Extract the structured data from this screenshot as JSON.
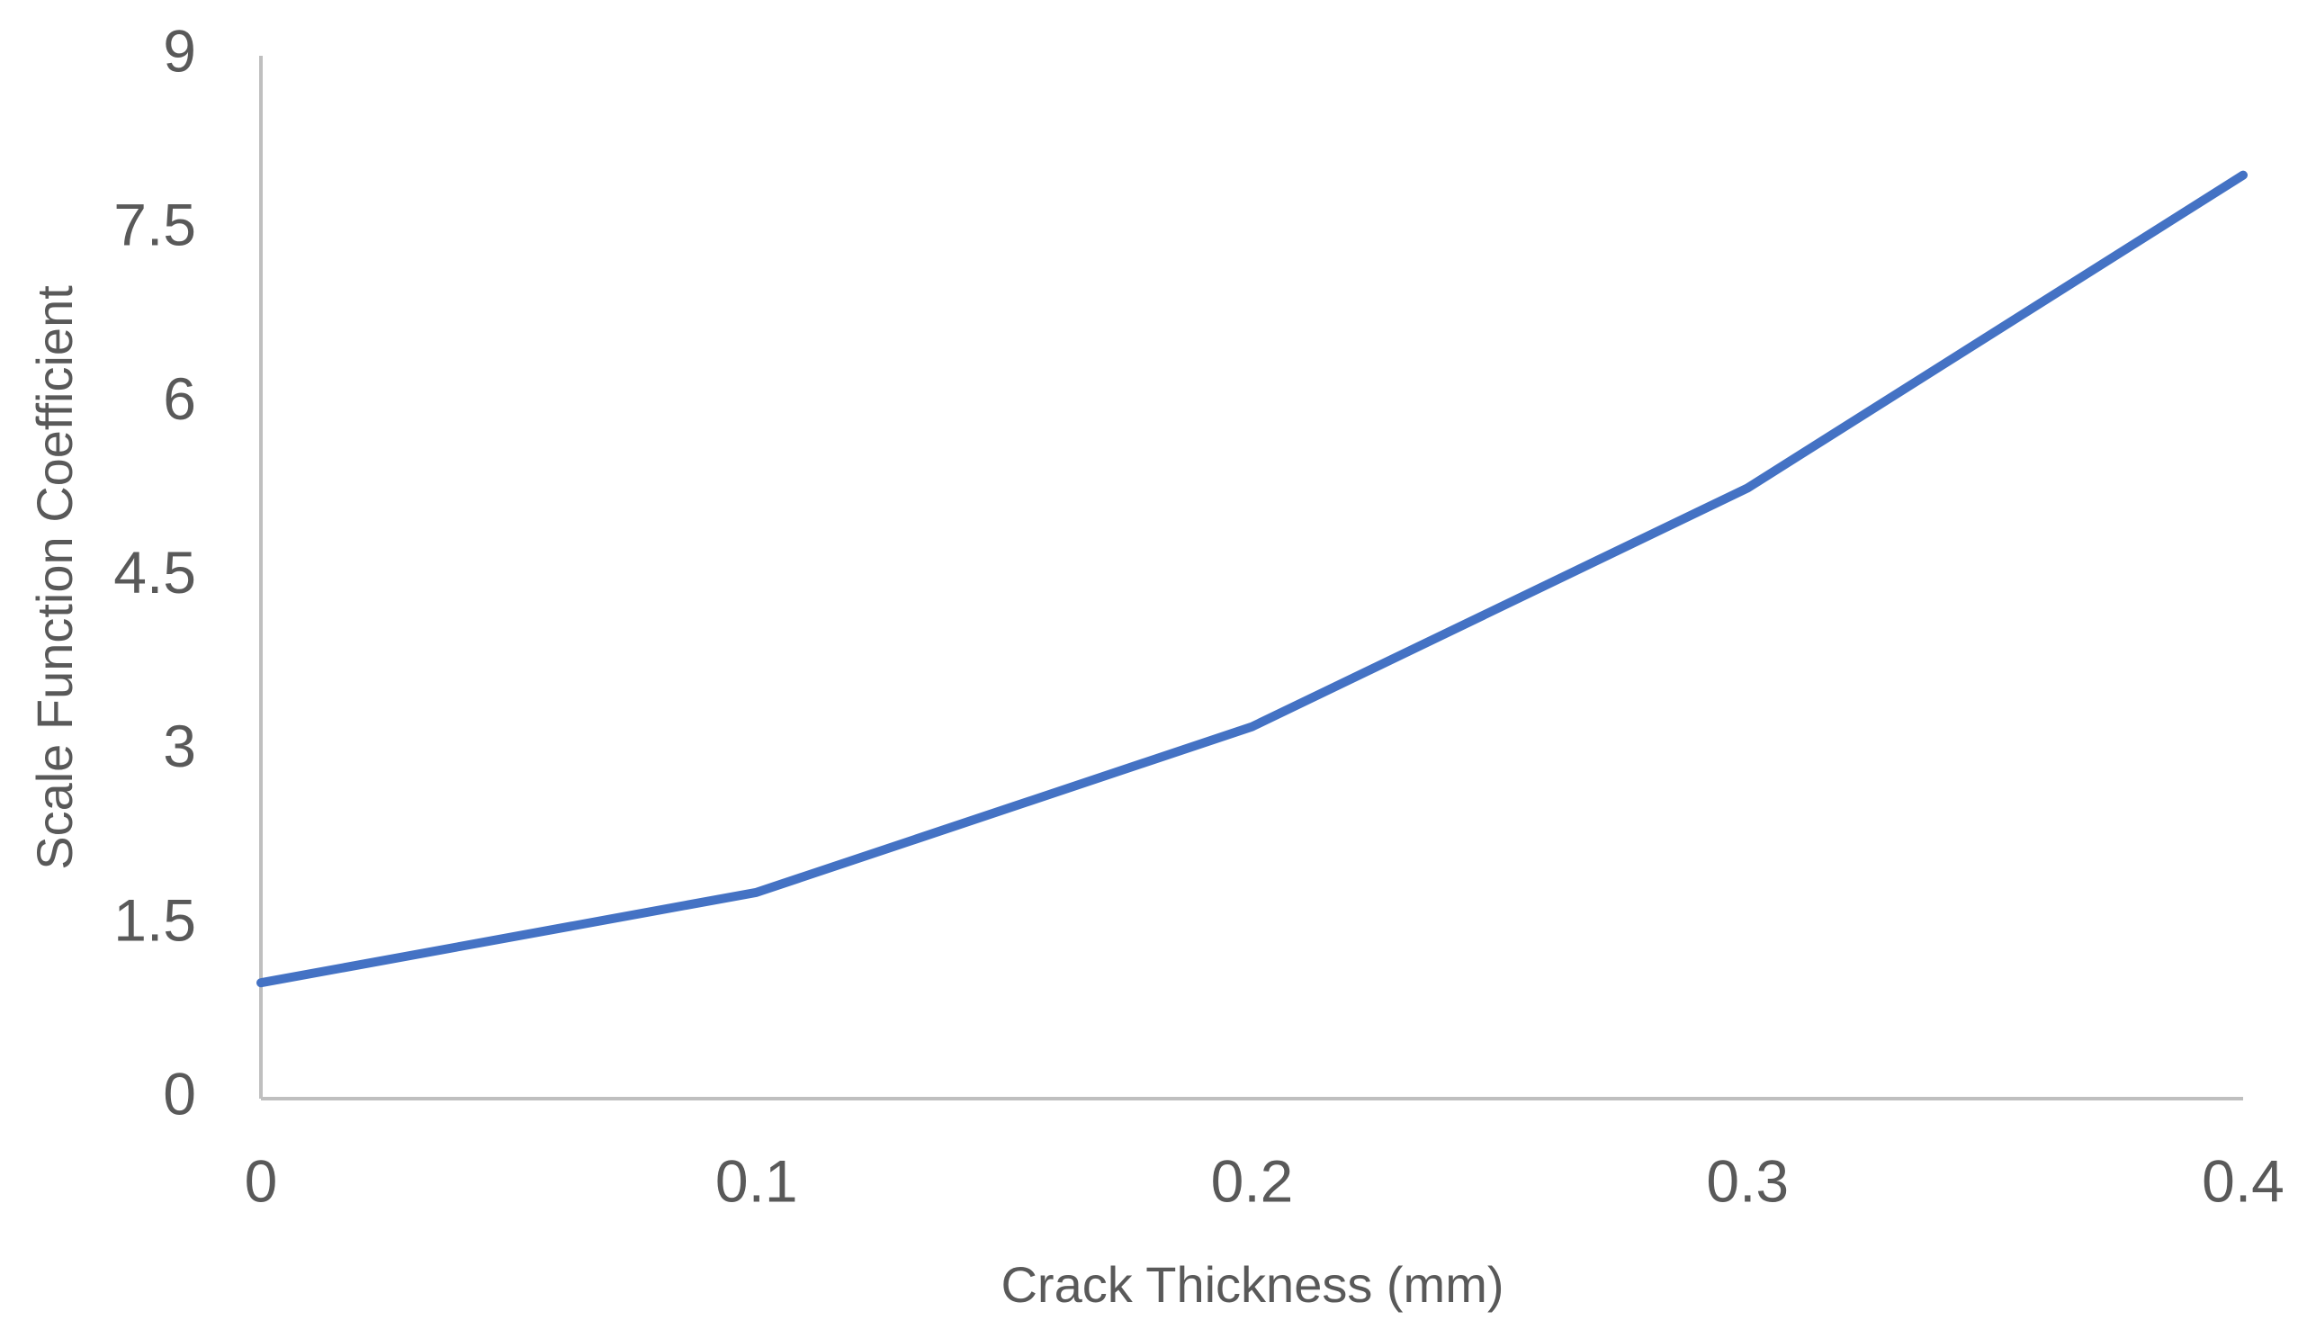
{
  "chart_data": {
    "type": "line",
    "x_label": "Crack Thickness (mm)",
    "y_label": "Scale Function Coefficient",
    "x": [
      0,
      0.1,
      0.2,
      0.3,
      0.4
    ],
    "series": [
      {
        "color": "#4472c4",
        "values": [
          1.0,
          1.78,
          3.21,
          5.27,
          7.97
        ]
      }
    ],
    "xlim": [
      0,
      0.4
    ],
    "xticks": [
      0,
      0.1,
      0.2,
      0.3,
      0.4
    ],
    "ylim": [
      0,
      9
    ],
    "yticks": [
      0,
      1.5,
      3,
      4.5,
      6,
      7.5,
      9
    ],
    "grid": false
  }
}
